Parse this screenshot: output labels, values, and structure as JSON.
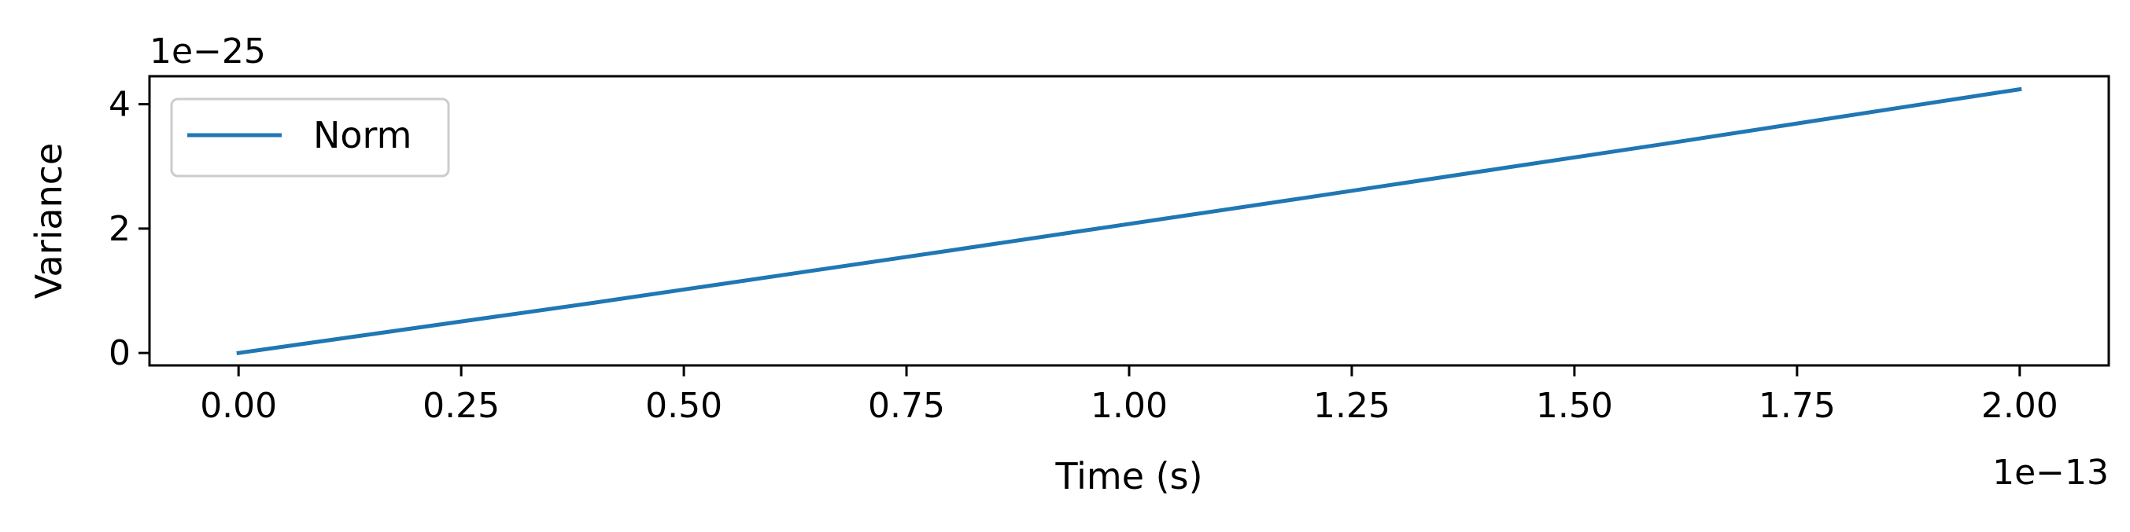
{
  "chart_data": {
    "type": "line",
    "title": "",
    "xlabel": "Time (s)",
    "ylabel": "Variance",
    "x_offset_text": "1e−13",
    "y_offset_text": "1e−25",
    "xlim": [
      -0.1,
      2.1
    ],
    "ylim": [
      -0.2,
      4.45
    ],
    "x_ticks": [
      0.0,
      0.25,
      0.5,
      0.75,
      1.0,
      1.25,
      1.5,
      1.75,
      2.0
    ],
    "x_tick_labels": [
      "0.00",
      "0.25",
      "0.50",
      "0.75",
      "1.00",
      "1.25",
      "1.50",
      "1.75",
      "2.00"
    ],
    "y_ticks": [
      0,
      2,
      4
    ],
    "y_tick_labels": [
      "0",
      "2",
      "4"
    ],
    "grid": false,
    "legend": {
      "location": "upper left"
    },
    "series": [
      {
        "name": "Norm",
        "color": "#1f77b4",
        "x": [
          0.0,
          0.4,
          0.8,
          1.2,
          1.6,
          2.0
        ],
        "y": [
          0.0,
          0.81,
          1.65,
          2.5,
          3.36,
          4.24
        ]
      }
    ]
  }
}
